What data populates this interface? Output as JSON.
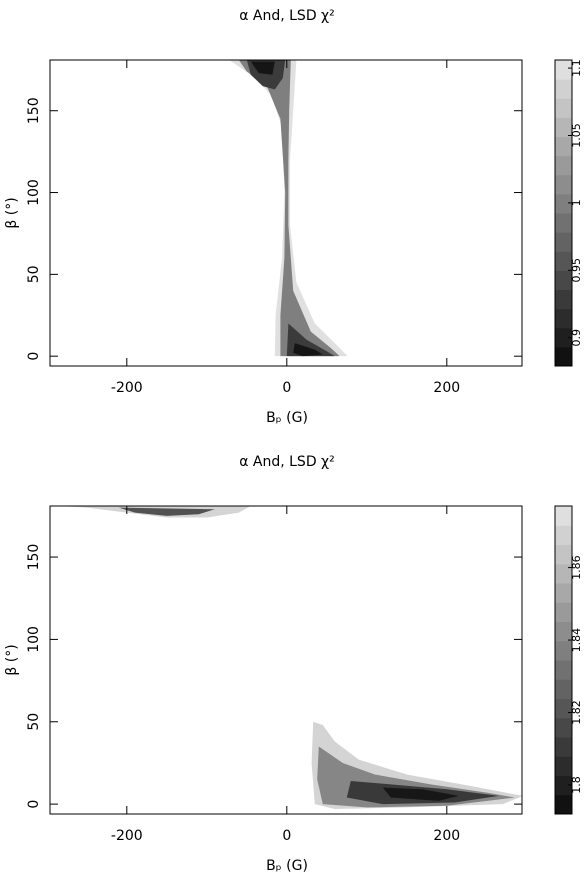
{
  "chart_data": [
    {
      "type": "contour",
      "title": "α And, LSD χ²",
      "x_label": "Bₚ (G)",
      "y_label": "β (°)",
      "xlim": [
        -296,
        294
      ],
      "ylim": [
        -6,
        181
      ],
      "xticks": [
        -200,
        0,
        200
      ],
      "yticks": [
        0,
        50,
        100,
        150
      ],
      "colorbar": {
        "lim": [
          0.879,
          1.106
        ],
        "ticks": [
          0.9,
          0.95,
          1,
          1.05,
          1.1
        ]
      },
      "contours": [
        {
          "level": 1.1,
          "x": [
            -72,
            12,
            8,
            4,
            4,
            12,
            35,
            60,
            76,
            -15,
            -14,
            -6,
            -3,
            -6,
            -20,
            -45
          ],
          "y": [
            181,
            181,
            150,
            120,
            80,
            45,
            20,
            8,
            0,
            0,
            25,
            60,
            100,
            140,
            160,
            172
          ]
        },
        {
          "level": 1.0,
          "x": [
            -60,
            5,
            3,
            2,
            2,
            8,
            30,
            55,
            66,
            -8,
            -8,
            -3,
            -2,
            -8,
            -25,
            -50
          ],
          "y": [
            181,
            181,
            150,
            120,
            80,
            40,
            15,
            5,
            0,
            0,
            25,
            60,
            100,
            145,
            165,
            174
          ]
        },
        {
          "level": 0.93,
          "x": [
            -50,
            -2,
            -5,
            -15,
            -30,
            -45
          ],
          "y": [
            181,
            181,
            170,
            163,
            165,
            172
          ]
        },
        {
          "level": 0.93,
          "x": [
            2,
            25,
            50,
            60,
            0
          ],
          "y": [
            20,
            10,
            3,
            0,
            0
          ]
        },
        {
          "level": 0.89,
          "x": [
            -45,
            -15,
            -18,
            -35
          ],
          "y": [
            180,
            180,
            172,
            173
          ]
        },
        {
          "level": 0.89,
          "x": [
            10,
            35,
            45,
            20,
            8
          ],
          "y": [
            8,
            4,
            1,
            0,
            2
          ]
        }
      ]
    },
    {
      "type": "contour",
      "title": "α And, LSD χ²",
      "x_label": "Bₚ (G)",
      "y_label": "β (°)",
      "xlim": [
        -296,
        294
      ],
      "ylim": [
        -6,
        181
      ],
      "xticks": [
        -200,
        0,
        200
      ],
      "yticks": [
        0,
        50,
        100,
        150
      ],
      "colorbar": {
        "lim": [
          1.792,
          1.877
        ],
        "ticks": [
          1.8,
          1.82,
          1.84,
          1.86
        ]
      },
      "contours": [
        {
          "level": 1.87,
          "x": [
            -285,
            -45,
            -60,
            -100,
            -150,
            -200,
            -250
          ],
          "y": [
            181,
            181,
            177,
            174,
            174,
            177,
            180
          ]
        },
        {
          "level": 1.82,
          "x": [
            -210,
            -90,
            -110,
            -150,
            -190
          ],
          "y": [
            180,
            179,
            176,
            175,
            177
          ]
        },
        {
          "level": 1.87,
          "x": [
            33,
            45,
            60,
            90,
            150,
            230,
            295,
            270,
            150,
            60,
            35,
            31
          ],
          "y": [
            50,
            48,
            38,
            27,
            18,
            11,
            5,
            0,
            -2,
            -3,
            0,
            25
          ]
        },
        {
          "level": 1.84,
          "x": [
            40,
            70,
            110,
            180,
            250,
            285,
            200,
            100,
            45,
            38
          ],
          "y": [
            35,
            25,
            18,
            12,
            7,
            4,
            -1,
            -2,
            0,
            15
          ]
        },
        {
          "level": 1.81,
          "x": [
            80,
            130,
            200,
            265,
            210,
            120,
            75
          ],
          "y": [
            14,
            12,
            9,
            5,
            1,
            0,
            4
          ]
        },
        {
          "level": 1.797,
          "x": [
            120,
            170,
            215,
            190,
            130
          ],
          "y": [
            10,
            9,
            5,
            2,
            4
          ]
        }
      ]
    }
  ]
}
